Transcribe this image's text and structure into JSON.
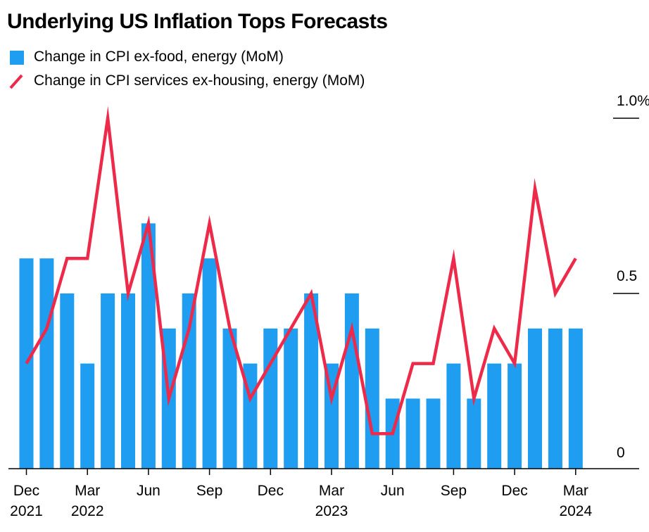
{
  "chart_data": {
    "type": "bar",
    "title": "Underlying US Inflation Tops Forecasts",
    "series": [
      {
        "name": "Change in CPI ex-food, energy (MoM)",
        "type": "bar",
        "color": "#1e9df1",
        "values": [
          0.6,
          0.6,
          0.5,
          0.3,
          0.5,
          0.5,
          0.7,
          0.4,
          0.5,
          0.6,
          0.4,
          0.3,
          0.4,
          0.4,
          0.5,
          0.3,
          0.5,
          0.4,
          0.2,
          0.2,
          0.2,
          0.3,
          0.2,
          0.3,
          0.3,
          0.4,
          0.4,
          0.4
        ]
      },
      {
        "name": "Change in CPI services ex-housing, energy (MoM)",
        "type": "line",
        "color": "#ed2a4a",
        "values": [
          0.3,
          0.4,
          0.6,
          0.6,
          1.0,
          0.5,
          0.7,
          0.2,
          0.4,
          0.7,
          0.4,
          0.2,
          0.3,
          0.4,
          0.5,
          0.2,
          0.4,
          0.1,
          0.1,
          0.3,
          0.3,
          0.6,
          0.2,
          0.4,
          0.3,
          0.8,
          0.5,
          0.6
        ]
      }
    ],
    "x_tick_labels": [
      {
        "index": 0,
        "line1": "Dec",
        "line2": "2021"
      },
      {
        "index": 3,
        "line1": "Mar",
        "line2": "2022"
      },
      {
        "index": 6,
        "line1": "Jun",
        "line2": ""
      },
      {
        "index": 9,
        "line1": "Sep",
        "line2": ""
      },
      {
        "index": 12,
        "line1": "Dec",
        "line2": ""
      },
      {
        "index": 15,
        "line1": "Mar",
        "line2": "2023"
      },
      {
        "index": 18,
        "line1": "Jun",
        "line2": ""
      },
      {
        "index": 21,
        "line1": "Sep",
        "line2": ""
      },
      {
        "index": 24,
        "line1": "Dec",
        "line2": ""
      },
      {
        "index": 27,
        "line1": "Mar",
        "line2": "2024"
      }
    ],
    "y_ticks": [
      {
        "value": 1.0,
        "label": "1.0%"
      },
      {
        "value": 0.5,
        "label": "0.5"
      },
      {
        "value": 0,
        "label": "0"
      }
    ],
    "ylim": [
      0,
      1.0
    ],
    "y_axis_side": "right",
    "grid": false,
    "legend_position": "top-left"
  }
}
